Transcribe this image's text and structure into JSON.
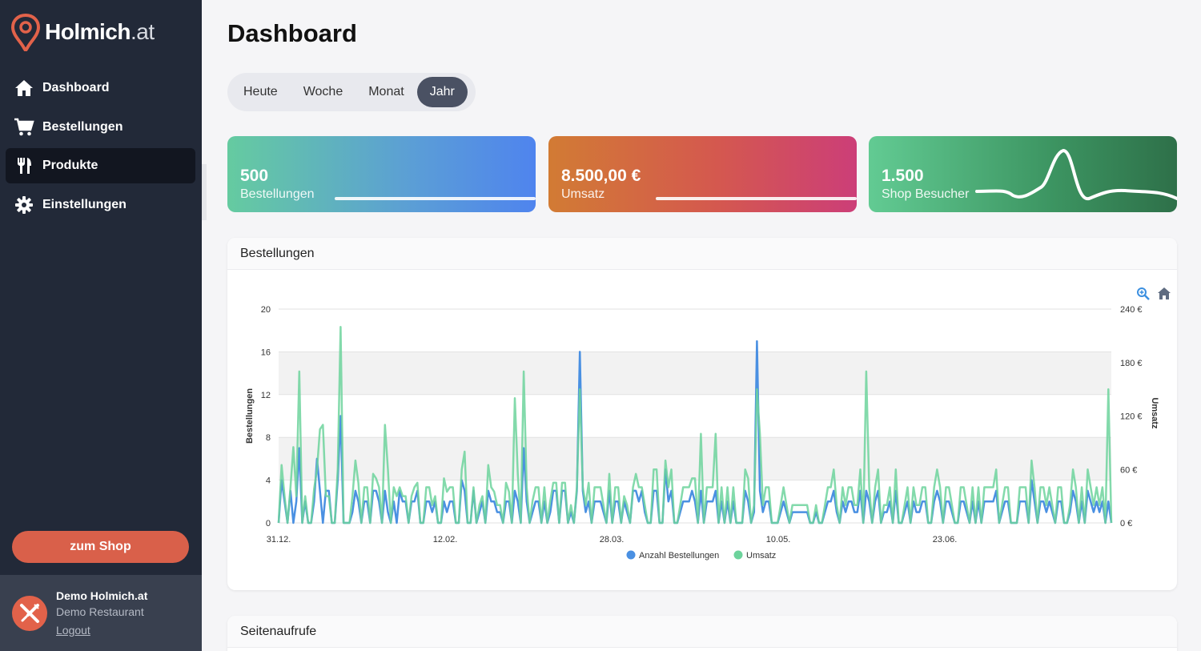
{
  "brand": {
    "name": "Holmich",
    "tld": ".at",
    "accent": "#e2624a"
  },
  "sidebar": {
    "items": [
      {
        "label": "Dashboard",
        "icon": "home-icon",
        "active": false
      },
      {
        "label": "Bestellungen",
        "icon": "cart-icon",
        "active": false
      },
      {
        "label": "Produkte",
        "icon": "fork-knife-icon",
        "active": true
      },
      {
        "label": "Einstellungen",
        "icon": "gear-icon",
        "active": false
      }
    ],
    "shop_button": "zum Shop",
    "user": {
      "name": "Demo Holmich.at",
      "restaurant": "Demo Restaurant",
      "logout": "Logout"
    }
  },
  "main": {
    "title": "Dashboard",
    "period_tabs": [
      {
        "label": "Heute",
        "active": false
      },
      {
        "label": "Woche",
        "active": false
      },
      {
        "label": "Monat",
        "active": false
      },
      {
        "label": "Jahr",
        "active": true
      }
    ],
    "stats": [
      {
        "value": "500",
        "label": "Bestellungen"
      },
      {
        "value": "8.500,00 €",
        "label": "Umsatz"
      },
      {
        "value": "1.500",
        "label": "Shop Besucher"
      }
    ],
    "orders_panel_title": "Bestellungen",
    "pageviews_panel_title": "Seitenaufrufe"
  },
  "chart_data": {
    "type": "line",
    "title": "",
    "x_tick_labels": [
      "31.12.",
      "12.02.",
      "28.03.",
      "10.05.",
      "23.06."
    ],
    "ylabel": "Bestellungen",
    "ylabel_right": "Umsatz",
    "ylim": [
      0,
      20
    ],
    "yticks": [
      "0",
      "4",
      "8",
      "12",
      "16",
      "20"
    ],
    "ylim_right": [
      0,
      240
    ],
    "yticks_right": [
      "0 €",
      "60 €",
      "120 €",
      "180 €",
      "240 €"
    ],
    "legend": "bottom-center",
    "toolbar_icons": [
      "zoom-icon",
      "home-icon"
    ],
    "series": [
      {
        "name": "Anzahl Bestellungen",
        "color": "#4a90e2",
        "axis": "left",
        "values": [
          0,
          4,
          2,
          0,
          3,
          0,
          2,
          7,
          0,
          2,
          0,
          0,
          2,
          6,
          3,
          0,
          3,
          3,
          0,
          0,
          4,
          10,
          0,
          0,
          0,
          1,
          3,
          2,
          0,
          2,
          2,
          0,
          3,
          3,
          2,
          0,
          3,
          1,
          0,
          2,
          0,
          3,
          2,
          2,
          0,
          2,
          2,
          3,
          0,
          0,
          2,
          2,
          1,
          2,
          0,
          0,
          2,
          1,
          2,
          2,
          0,
          0,
          4,
          3,
          0,
          0,
          3,
          0,
          1,
          2,
          0,
          3,
          2,
          2,
          1,
          1,
          0,
          2,
          2,
          0,
          3,
          2,
          0,
          7,
          2,
          0,
          1,
          2,
          2,
          0,
          2,
          0,
          1,
          3,
          3,
          0,
          3,
          3,
          0,
          1,
          0,
          3,
          16,
          3,
          1,
          2,
          0,
          2,
          2,
          2,
          1,
          0,
          3,
          0,
          2,
          2,
          0,
          2,
          1,
          0,
          3,
          3,
          2,
          3,
          1,
          0,
          0,
          3,
          3,
          0,
          0,
          5,
          2,
          3,
          0,
          0,
          1,
          2,
          2,
          2,
          3,
          2,
          0,
          3,
          0,
          2,
          2,
          2,
          3,
          0,
          2,
          0,
          2,
          0,
          2,
          0,
          0,
          0,
          3,
          2,
          0,
          1,
          17,
          3,
          1,
          2,
          2,
          0,
          0,
          0,
          1,
          2,
          1,
          0,
          1,
          1,
          1,
          1,
          1,
          1,
          0,
          0,
          1,
          0,
          0,
          1,
          2,
          2,
          3,
          1,
          0,
          2,
          1,
          2,
          2,
          1,
          1,
          3,
          0,
          3,
          2,
          0,
          2,
          3,
          0,
          1,
          1,
          2,
          0,
          3,
          0,
          0,
          1,
          2,
          0,
          2,
          1,
          1,
          2,
          2,
          0,
          0,
          2,
          3,
          2,
          0,
          2,
          2,
          1,
          0,
          0,
          2,
          2,
          1,
          0,
          2,
          0,
          2,
          0,
          2,
          2,
          2,
          2,
          3,
          0,
          1,
          2,
          2,
          0,
          0,
          0,
          2,
          2,
          2,
          0,
          4,
          2,
          0,
          2,
          2,
          1,
          2,
          1,
          0,
          2,
          2,
          0,
          0,
          1,
          3,
          2,
          0,
          2,
          0,
          3,
          2,
          1,
          2,
          1,
          2,
          0,
          2,
          0
        ]
      },
      {
        "name": "Umsatz",
        "color": "#6dd39c",
        "axis": "right",
        "values": [
          0,
          65,
          30,
          0,
          40,
          85,
          30,
          170,
          0,
          30,
          0,
          0,
          38,
          60,
          105,
          110,
          30,
          30,
          0,
          0,
          60,
          220,
          0,
          0,
          0,
          30,
          70,
          45,
          0,
          40,
          40,
          0,
          55,
          50,
          40,
          0,
          110,
          60,
          0,
          40,
          30,
          40,
          30,
          30,
          0,
          30,
          40,
          45,
          0,
          0,
          40,
          40,
          20,
          30,
          0,
          0,
          50,
          35,
          40,
          40,
          0,
          0,
          60,
          80,
          0,
          0,
          40,
          0,
          20,
          30,
          0,
          65,
          40,
          35,
          20,
          20,
          0,
          45,
          35,
          0,
          140,
          55,
          0,
          170,
          40,
          0,
          25,
          40,
          40,
          0,
          40,
          0,
          25,
          45,
          45,
          0,
          45,
          45,
          0,
          20,
          0,
          40,
          150,
          40,
          20,
          45,
          0,
          40,
          40,
          40,
          20,
          0,
          55,
          0,
          40,
          40,
          0,
          30,
          20,
          0,
          40,
          55,
          40,
          40,
          20,
          0,
          0,
          60,
          60,
          0,
          0,
          70,
          40,
          60,
          0,
          0,
          20,
          40,
          40,
          40,
          50,
          50,
          0,
          100,
          0,
          40,
          40,
          40,
          100,
          0,
          40,
          0,
          40,
          0,
          40,
          0,
          0,
          0,
          60,
          50,
          0,
          20,
          150,
          100,
          20,
          40,
          40,
          0,
          0,
          0,
          20,
          40,
          20,
          0,
          20,
          20,
          20,
          20,
          20,
          20,
          0,
          0,
          20,
          0,
          0,
          20,
          40,
          40,
          60,
          20,
          0,
          40,
          20,
          40,
          40,
          20,
          20,
          60,
          0,
          170,
          40,
          0,
          40,
          60,
          0,
          20,
          20,
          40,
          0,
          60,
          0,
          0,
          20,
          40,
          0,
          40,
          20,
          20,
          40,
          40,
          0,
          0,
          40,
          60,
          40,
          0,
          40,
          40,
          20,
          0,
          0,
          40,
          40,
          20,
          0,
          40,
          0,
          40,
          0,
          40,
          40,
          40,
          40,
          60,
          0,
          20,
          40,
          40,
          0,
          0,
          0,
          40,
          40,
          40,
          0,
          70,
          40,
          0,
          40,
          40,
          20,
          40,
          20,
          0,
          40,
          40,
          0,
          0,
          20,
          60,
          40,
          0,
          40,
          0,
          60,
          40,
          20,
          40,
          20,
          40,
          0,
          150,
          0
        ]
      }
    ]
  }
}
